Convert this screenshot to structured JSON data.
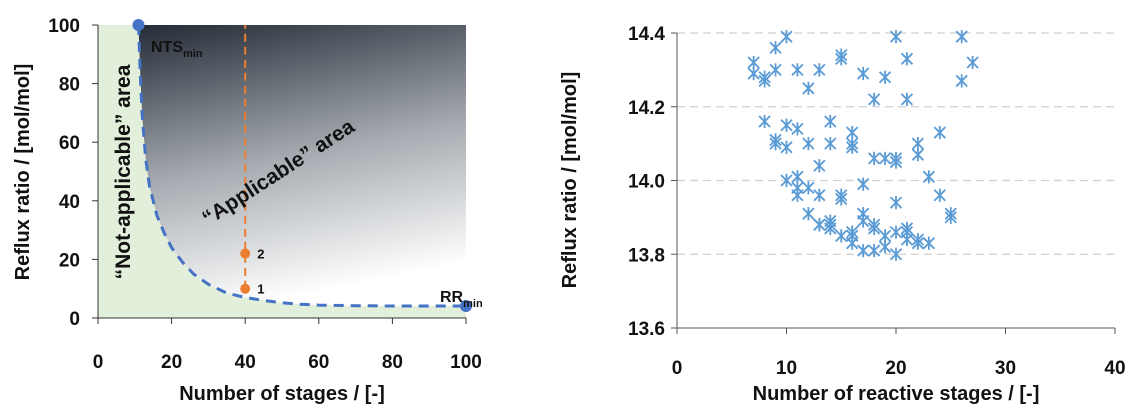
{
  "chart_data": [
    {
      "type": "area",
      "xlabel": "Number of stages / [-]",
      "ylabel": "Reflux ratio / [mol/mol]",
      "xlim": [
        0,
        100
      ],
      "ylim": [
        0,
        100
      ],
      "xticks": [
        "0",
        "20",
        "40",
        "60",
        "80",
        "100"
      ],
      "yticks": [
        "0",
        "20",
        "40",
        "60",
        "80",
        "100"
      ],
      "grid": false,
      "boundary_curve": {
        "x": [
          11,
          11.5,
          12,
          13,
          14,
          16,
          18,
          20,
          23,
          26,
          30,
          35,
          40,
          45,
          50,
          55,
          60,
          70,
          80,
          90,
          100
        ],
        "y": [
          100,
          83,
          69,
          54,
          45,
          35,
          29,
          24,
          19,
          15,
          11.5,
          8.5,
          7,
          6,
          5.2,
          4.7,
          4.4,
          4.2,
          4.1,
          4.1,
          4.1
        ],
        "style": "dashed",
        "color": "#4472C4"
      },
      "endpoints": [
        {
          "label_main": "NTS",
          "label_sub": "min",
          "x": 11,
          "y": 100
        },
        {
          "label_main": "RR",
          "label_sub": "min",
          "x": 100,
          "y": 4.1
        }
      ],
      "vertical_line": {
        "x": 40,
        "y_from": 10,
        "y_to": 100,
        "style": "dashed",
        "color": "#ED7D31"
      },
      "points": [
        {
          "label": "1",
          "x": 40,
          "y": 10
        },
        {
          "label": "2",
          "x": 40,
          "y": 22
        }
      ],
      "regions": [
        {
          "label": "“Not-applicable” area",
          "color": "#E2EFDA"
        },
        {
          "label": "“Applicable” area",
          "gradient": [
            "#ffffff",
            "#1E2530"
          ]
        }
      ],
      "colors": {
        "boundary": "#4472C4",
        "orange": "#ED7D31",
        "green_fill": "#E2EFDA",
        "dark": "#1E2530"
      }
    },
    {
      "type": "scatter",
      "xlabel": "Number of reactive stages / [-]",
      "ylabel": "Reflux ratio / [mol/mol]",
      "xlim": [
        0,
        40
      ],
      "ylim": [
        13.6,
        14.4
      ],
      "xticks": [
        "0",
        "10",
        "20",
        "30",
        "40"
      ],
      "yticks": [
        "13.6",
        "13.8",
        "14.0",
        "14.2",
        "14.4"
      ],
      "grid": true,
      "marker": "asterisk",
      "color": "#5B9BD5",
      "x": [
        7,
        7,
        8,
        8,
        8,
        9,
        9,
        9,
        10,
        10,
        11,
        11,
        12,
        12,
        12,
        13,
        13,
        13,
        14,
        14,
        14,
        15,
        15,
        15,
        16,
        16,
        16,
        16,
        17,
        17,
        17,
        18,
        18,
        18,
        19,
        19,
        19,
        20,
        20,
        20,
        20,
        21,
        21,
        21,
        21,
        22,
        22,
        22,
        23,
        24,
        24,
        25,
        26,
        26,
        27,
        9,
        10,
        11,
        11,
        12,
        13,
        14,
        15,
        16,
        17,
        18,
        20,
        21,
        22,
        23,
        25,
        10,
        11,
        13,
        14,
        15,
        16,
        17,
        18,
        19,
        20
      ],
      "y": [
        14.32,
        14.29,
        14.28,
        14.27,
        14.16,
        14.36,
        14.3,
        14.1,
        14.39,
        14.09,
        14.3,
        14.14,
        14.25,
        14.1,
        13.98,
        14.3,
        14.04,
        13.88,
        14.16,
        14.1,
        13.88,
        14.33,
        13.96,
        13.85,
        14.13,
        14.1,
        13.85,
        13.83,
        14.29,
        13.99,
        13.91,
        14.22,
        14.06,
        13.81,
        14.28,
        14.06,
        13.82,
        14.39,
        14.05,
        13.94,
        13.8,
        14.33,
        14.22,
        13.87,
        13.84,
        14.1,
        14.07,
        13.83,
        14.01,
        14.13,
        13.96,
        13.91,
        14.39,
        14.27,
        14.32,
        14.11,
        14.15,
        14.01,
        13.96,
        13.91,
        13.96,
        13.89,
        14.34,
        13.86,
        13.81,
        13.88,
        14.06,
        13.86,
        13.84,
        13.83,
        13.9,
        14.0,
        13.98,
        13.88,
        13.87,
        13.95,
        14.09,
        13.89,
        13.87,
        13.85,
        13.86
      ]
    }
  ]
}
